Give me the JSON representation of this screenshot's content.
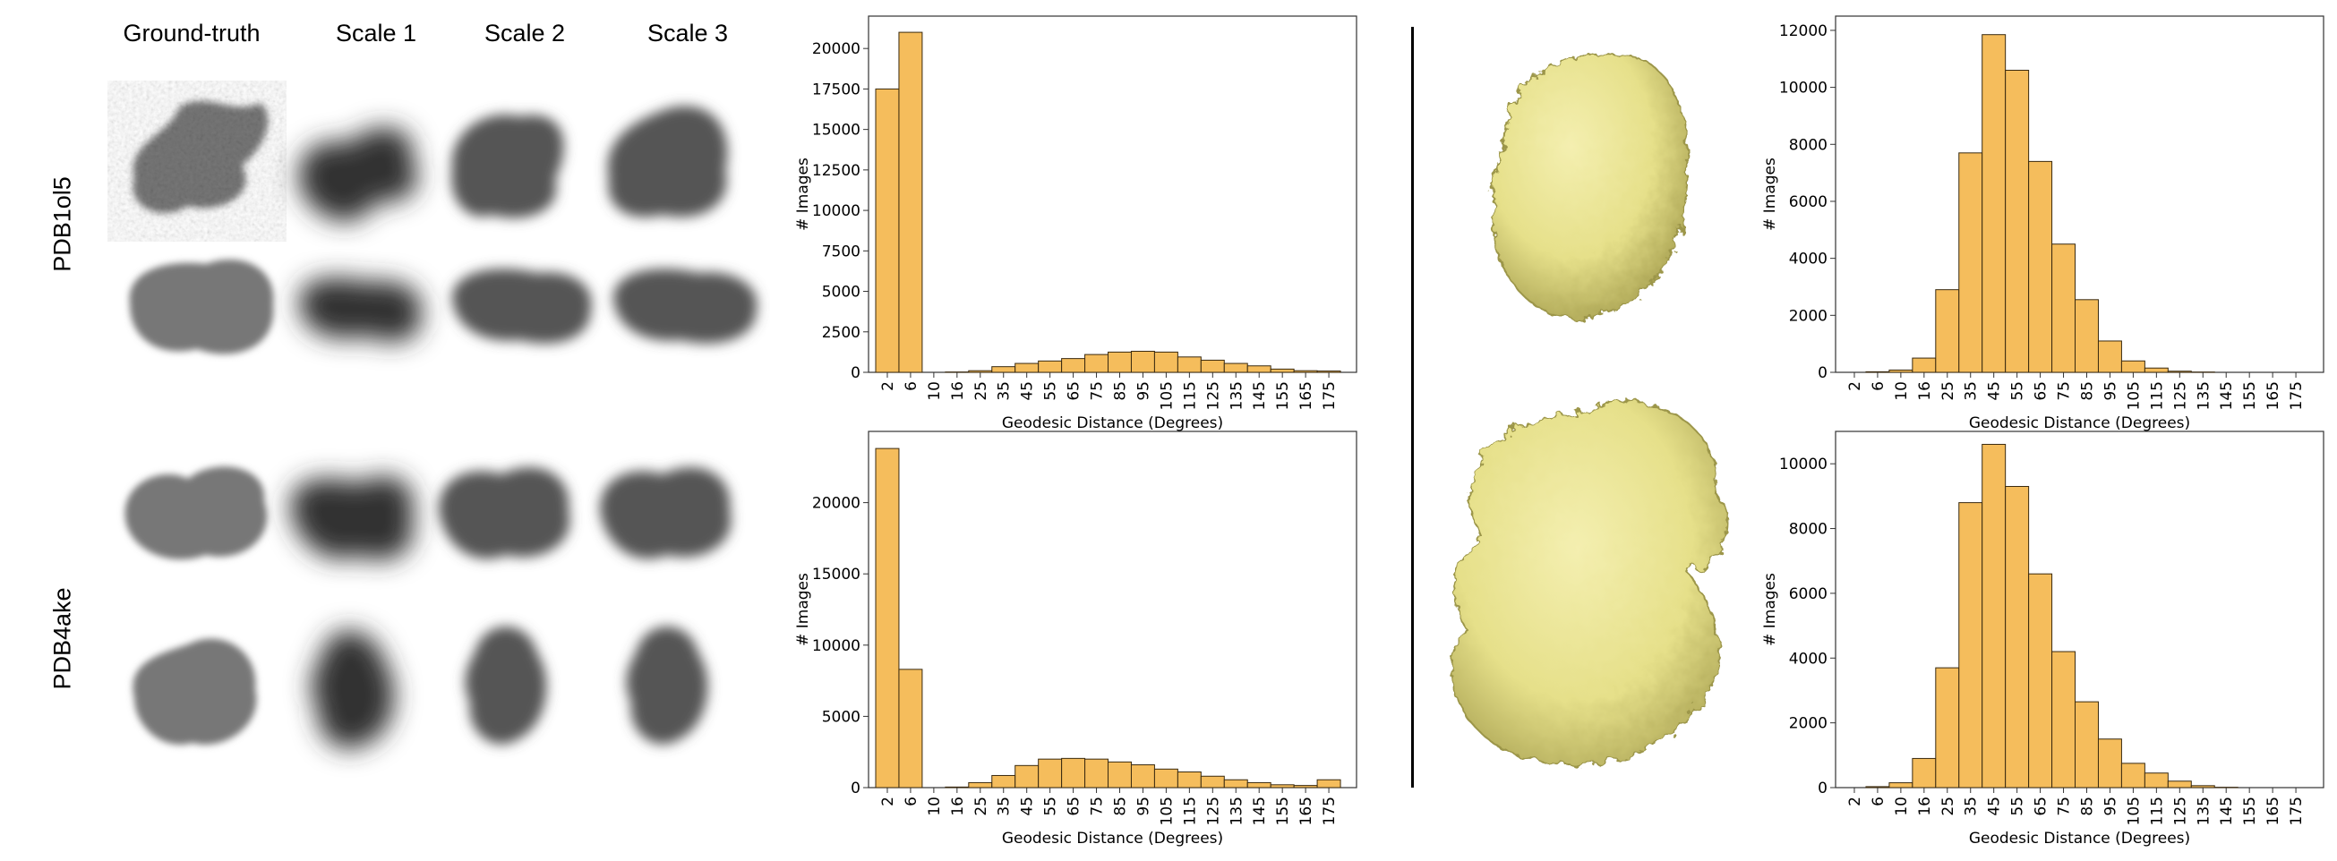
{
  "column_headers": [
    "Ground-truth",
    "Scale 1",
    "Scale 2",
    "Scale 3"
  ],
  "row_labels": [
    "PDB1ol5",
    "PDB4ake"
  ],
  "colors": {
    "bar_fill": "#f5bd5c",
    "bar_edge": "#3a2a10",
    "surface": "#e6e08a",
    "surface_shade": "#b8b25a"
  },
  "chart_data": [
    {
      "type": "bar",
      "categories": [
        "2",
        "6",
        "10",
        "16",
        "25",
        "35",
        "45",
        "55",
        "65",
        "75",
        "85",
        "95",
        "105",
        "115",
        "125",
        "135",
        "145",
        "155",
        "165",
        "175"
      ],
      "values": [
        17500,
        21000,
        0,
        20,
        100,
        350,
        550,
        700,
        850,
        1100,
        1250,
        1300,
        1250,
        950,
        750,
        550,
        400,
        200,
        100,
        80
      ],
      "xlabel": "Geodesic Distance (Degrees)",
      "ylabel": "# Images",
      "ylim": [
        0,
        22000
      ],
      "yticks": [
        "0",
        "2500",
        "5000",
        "7500",
        "10000",
        "12500",
        "15000",
        "17500",
        "20000"
      ]
    },
    {
      "type": "bar",
      "categories": [
        "2",
        "6",
        "10",
        "16",
        "25",
        "35",
        "45",
        "55",
        "65",
        "75",
        "85",
        "95",
        "105",
        "115",
        "125",
        "135",
        "145",
        "155",
        "165",
        "175"
      ],
      "values": [
        23800,
        8300,
        0,
        40,
        350,
        850,
        1550,
        2000,
        2050,
        2000,
        1800,
        1600,
        1300,
        1100,
        800,
        550,
        350,
        200,
        150,
        550
      ],
      "xlabel": "Geodesic Distance (Degrees)",
      "ylabel": "# Images",
      "ylim": [
        0,
        25000
      ],
      "yticks": [
        "0",
        "5000",
        "10000",
        "15000",
        "20000"
      ]
    },
    {
      "type": "bar",
      "categories": [
        "2",
        "6",
        "10",
        "16",
        "25",
        "35",
        "45",
        "55",
        "65",
        "75",
        "85",
        "95",
        "105",
        "115",
        "125",
        "135",
        "145",
        "155",
        "165",
        "175"
      ],
      "values": [
        0,
        20,
        80,
        500,
        2900,
        7700,
        11850,
        10600,
        7400,
        4500,
        2550,
        1100,
        400,
        150,
        40,
        10,
        0,
        0,
        0,
        0
      ],
      "xlabel": "Geodesic Distance (Degrees)",
      "ylabel": "# Images",
      "ylim": [
        0,
        12500
      ],
      "yticks": [
        "0",
        "2000",
        "4000",
        "6000",
        "8000",
        "10000",
        "12000"
      ]
    },
    {
      "type": "bar",
      "categories": [
        "2",
        "6",
        "10",
        "16",
        "25",
        "35",
        "45",
        "55",
        "65",
        "75",
        "85",
        "95",
        "105",
        "115",
        "125",
        "135",
        "145",
        "155",
        "165",
        "175"
      ],
      "values": [
        0,
        30,
        150,
        900,
        3700,
        8800,
        10600,
        9300,
        6600,
        4200,
        2650,
        1500,
        750,
        450,
        200,
        60,
        10,
        0,
        0,
        0
      ],
      "xlabel": "Geodesic Distance (Degrees)",
      "ylabel": "# Images",
      "ylim": [
        0,
        11000
      ],
      "yticks": [
        "0",
        "2000",
        "4000",
        "6000",
        "8000",
        "10000"
      ]
    }
  ]
}
